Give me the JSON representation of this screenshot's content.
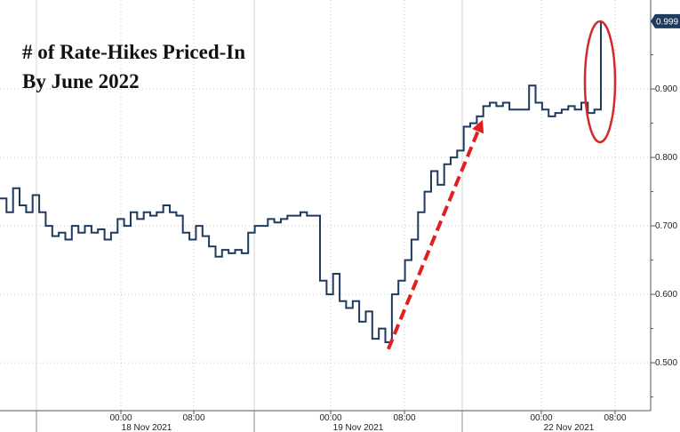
{
  "chart_data": {
    "type": "line",
    "title_lines": [
      "# of Rate-Hikes Priced-In",
      "By June 2022"
    ],
    "xlabel": "",
    "ylabel": "",
    "ylim": [
      0.43,
      1.03
    ],
    "yticks": [
      0.5,
      0.6,
      0.7,
      0.8,
      0.9
    ],
    "ytick_labels": [
      "0.500",
      "0.600",
      "0.700",
      "0.800",
      "0.900"
    ],
    "last_value": 0.999,
    "last_value_label": "0.999",
    "x_time_labels": [
      {
        "t": "18 Nov 2021 00:00",
        "label": "00:00"
      },
      {
        "t": "18 Nov 2021 08:00",
        "label": "08:00"
      },
      {
        "t": "19 Nov 2021 00:00",
        "label": "00:00"
      },
      {
        "t": "19 Nov 2021 08:00",
        "label": "08:00"
      },
      {
        "t": "22 Nov 2021 00:00",
        "label": "00:00"
      },
      {
        "t": "22 Nov 2021 08:00",
        "label": "08:00"
      }
    ],
    "x_date_labels": [
      "18 Nov 2021",
      "19 Nov 2021",
      "22 Nov 2021"
    ],
    "grid": true,
    "colors": {
      "line": "#1e3a5f",
      "arrow": "#e02020",
      "ellipse": "#d42a2a",
      "last_value_box": "#1e3a5f"
    },
    "series": [
      {
        "values": [
          [
            0,
            0.74
          ],
          [
            1,
            0.72
          ],
          [
            2,
            0.755
          ],
          [
            3,
            0.73
          ],
          [
            4,
            0.72
          ],
          [
            5,
            0.745
          ],
          [
            6,
            0.72
          ],
          [
            7,
            0.7
          ],
          [
            8,
            0.685
          ],
          [
            9,
            0.69
          ],
          [
            10,
            0.68
          ],
          [
            11,
            0.7
          ],
          [
            12,
            0.69
          ],
          [
            13,
            0.7
          ],
          [
            14,
            0.69
          ],
          [
            15,
            0.695
          ],
          [
            16,
            0.68
          ],
          [
            17,
            0.69
          ],
          [
            18,
            0.71
          ],
          [
            19,
            0.7
          ],
          [
            20,
            0.72
          ],
          [
            21,
            0.71
          ],
          [
            22,
            0.72
          ],
          [
            23,
            0.715
          ],
          [
            24,
            0.72
          ],
          [
            25,
            0.73
          ],
          [
            26,
            0.72
          ],
          [
            27,
            0.715
          ],
          [
            28,
            0.69
          ],
          [
            29,
            0.68
          ],
          [
            30,
            0.7
          ],
          [
            31,
            0.685
          ],
          [
            32,
            0.67
          ],
          [
            33,
            0.655
          ],
          [
            34,
            0.665
          ],
          [
            35,
            0.66
          ],
          [
            36,
            0.665
          ],
          [
            37,
            0.66
          ],
          [
            38,
            0.69
          ],
          [
            39,
            0.7
          ],
          [
            40,
            0.7
          ],
          [
            41,
            0.71
          ],
          [
            42,
            0.705
          ],
          [
            43,
            0.71
          ],
          [
            44,
            0.715
          ],
          [
            45,
            0.715
          ],
          [
            46,
            0.72
          ],
          [
            47,
            0.715
          ],
          [
            48,
            0.715
          ],
          [
            49,
            0.62
          ],
          [
            50,
            0.6
          ],
          [
            51,
            0.63
          ],
          [
            52,
            0.59
          ],
          [
            53,
            0.58
          ],
          [
            54,
            0.59
          ],
          [
            55,
            0.56
          ],
          [
            56,
            0.575
          ],
          [
            57,
            0.535
          ],
          [
            58,
            0.55
          ],
          [
            59,
            0.53
          ],
          [
            60,
            0.6
          ],
          [
            61,
            0.62
          ],
          [
            62,
            0.65
          ],
          [
            63,
            0.68
          ],
          [
            64,
            0.72
          ],
          [
            65,
            0.75
          ],
          [
            66,
            0.78
          ],
          [
            67,
            0.76
          ],
          [
            68,
            0.79
          ],
          [
            69,
            0.8
          ],
          [
            70,
            0.81
          ],
          [
            71,
            0.845
          ],
          [
            72,
            0.85
          ],
          [
            73,
            0.86
          ],
          [
            74,
            0.875
          ],
          [
            75,
            0.88
          ],
          [
            76,
            0.875
          ],
          [
            77,
            0.88
          ],
          [
            78,
            0.87
          ],
          [
            79,
            0.87
          ],
          [
            80,
            0.87
          ],
          [
            81,
            0.905
          ],
          [
            82,
            0.88
          ],
          [
            83,
            0.87
          ],
          [
            84,
            0.86
          ],
          [
            85,
            0.865
          ],
          [
            86,
            0.87
          ],
          [
            87,
            0.875
          ],
          [
            88,
            0.87
          ],
          [
            89,
            0.88
          ],
          [
            90,
            0.865
          ],
          [
            91,
            0.87
          ],
          [
            92,
            0.999
          ]
        ]
      }
    ]
  }
}
